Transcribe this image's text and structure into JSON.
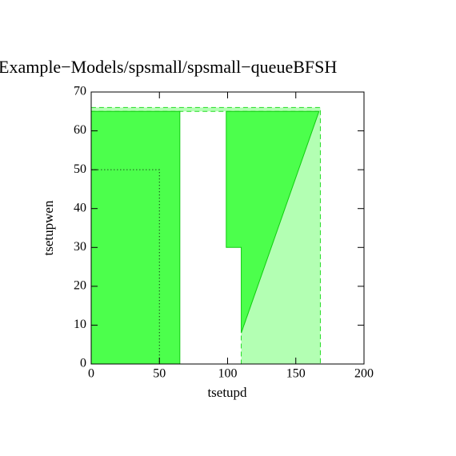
{
  "chart_data": {
    "type": "region",
    "title": "Example−Models/spsmall/spsmall−queueBFSH",
    "xlabel": "tsetupd",
    "ylabel": "tsetupwen",
    "xlim": [
      0,
      200
    ],
    "ylim": [
      0,
      70
    ],
    "xticks": [
      0,
      50,
      100,
      150,
      200
    ],
    "yticks": [
      0,
      10,
      20,
      30,
      40,
      50,
      60,
      70
    ],
    "regions": [
      {
        "fill": "#b3ffb3",
        "color": "#22dd22",
        "line_style": "dashed",
        "x": [
          110,
          168,
          168,
          0,
          0,
          166,
          110
        ],
        "y": [
          0,
          0,
          66,
          66,
          65,
          65,
          8
        ]
      },
      {
        "fill": "#4cff4c",
        "color": "#11cc11",
        "line_style": "solid",
        "x": [
          0,
          65,
          65,
          0
        ],
        "y": [
          0,
          0,
          65,
          65
        ]
      },
      {
        "fill": "#4cff4c",
        "color": "#11cc11",
        "line_style": "solid",
        "x": [
          99,
          167,
          110,
          110,
          99
        ],
        "y": [
          65,
          65,
          8,
          30,
          30
        ]
      },
      {
        "fill": "none",
        "color": "#000000",
        "line_style": "dotted",
        "x": [
          0,
          50,
          50,
          0
        ],
        "y": [
          0,
          0,
          50,
          50
        ]
      }
    ]
  }
}
